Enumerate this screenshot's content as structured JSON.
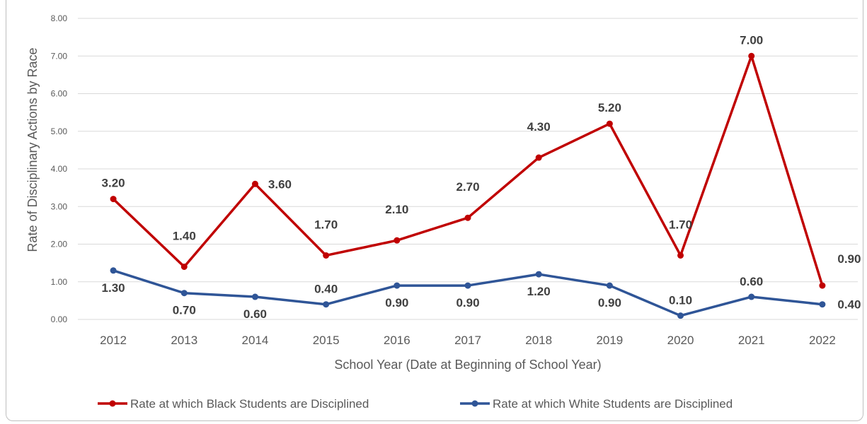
{
  "chart_data": {
    "type": "line",
    "title": "",
    "xlabel": "School Year (Date at Beginning of School Year)",
    "ylabel": "Rate of Disciplinary Actions by Race",
    "ylim": [
      0,
      8
    ],
    "y_ticks": [
      "0.00",
      "1.00",
      "2.00",
      "3.00",
      "4.00",
      "5.00",
      "6.00",
      "7.00",
      "8.00"
    ],
    "categories": [
      "2012",
      "2013",
      "2014",
      "2015",
      "2016",
      "2017",
      "2018",
      "2019",
      "2020",
      "2021",
      "2022"
    ],
    "grid": true,
    "legend_position": "bottom",
    "series": [
      {
        "name": "Rate at which Black Students are Disciplined",
        "color": "#c00000",
        "values": [
          3.2,
          1.4,
          3.6,
          1.7,
          2.1,
          2.7,
          4.3,
          5.2,
          1.7,
          7.0,
          0.9
        ],
        "labels": [
          "3.20",
          "1.40",
          "3.60",
          "1.70",
          "2.10",
          "2.70",
          "4.30",
          "5.20",
          "1.70",
          "7.00",
          "0.90"
        ]
      },
      {
        "name": "Rate at which White Students are Disciplined",
        "color": "#2f5597",
        "values": [
          1.3,
          0.7,
          0.6,
          0.4,
          0.9,
          0.9,
          1.2,
          0.9,
          0.1,
          0.6,
          0.4
        ],
        "labels": [
          "1.30",
          "0.70",
          "0.60",
          "0.40",
          "0.90",
          "0.90",
          "1.20",
          "0.90",
          "0.10",
          "0.60",
          "0.40"
        ]
      }
    ]
  }
}
